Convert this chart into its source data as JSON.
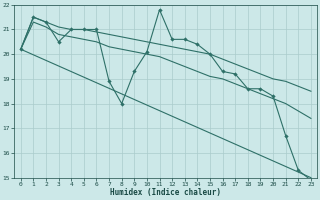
{
  "xlabel": "Humidex (Indice chaleur)",
  "bg_color": "#cce8e8",
  "grid_color": "#aacccc",
  "line_color": "#2e7068",
  "xlim": [
    -0.5,
    23.5
  ],
  "ylim": [
    15,
    22
  ],
  "xticks": [
    0,
    1,
    2,
    3,
    4,
    5,
    6,
    7,
    8,
    9,
    10,
    11,
    12,
    13,
    14,
    15,
    16,
    17,
    18,
    19,
    20,
    21,
    22,
    23
  ],
  "yticks": [
    15,
    16,
    17,
    18,
    19,
    20,
    21,
    22
  ],
  "line1_x": [
    0,
    1,
    2,
    3,
    4,
    5,
    6,
    7,
    8,
    9,
    10,
    11,
    12,
    13,
    14,
    15,
    16,
    17,
    18,
    19,
    20,
    21,
    22,
    23
  ],
  "line1_y": [
    20.2,
    21.5,
    21.3,
    20.5,
    21.0,
    21.0,
    21.0,
    18.9,
    18.0,
    19.3,
    20.1,
    21.8,
    20.6,
    20.6,
    20.4,
    20.0,
    19.3,
    19.2,
    18.6,
    18.6,
    18.3,
    16.7,
    15.3,
    14.9
  ],
  "line2_x": [
    0,
    23
  ],
  "line2_y": [
    20.2,
    15.0
  ],
  "line3_x": [
    0,
    1,
    2,
    3,
    4,
    5,
    6,
    7,
    8,
    9,
    10,
    11,
    12,
    13,
    14,
    15,
    16,
    17,
    18,
    19,
    20,
    21,
    22,
    23
  ],
  "line3_y": [
    20.2,
    21.5,
    21.3,
    21.1,
    21.0,
    21.0,
    20.9,
    20.8,
    20.7,
    20.6,
    20.5,
    20.4,
    20.3,
    20.2,
    20.1,
    20.0,
    19.8,
    19.6,
    19.4,
    19.2,
    19.0,
    18.9,
    18.7,
    18.5
  ],
  "line4_x": [
    0,
    1,
    2,
    3,
    4,
    5,
    6,
    7,
    8,
    9,
    10,
    11,
    12,
    13,
    14,
    15,
    16,
    17,
    18,
    19,
    20,
    21,
    22,
    23
  ],
  "line4_y": [
    20.2,
    21.3,
    21.1,
    20.8,
    20.7,
    20.6,
    20.5,
    20.3,
    20.2,
    20.1,
    20.0,
    19.9,
    19.7,
    19.5,
    19.3,
    19.1,
    19.0,
    18.8,
    18.6,
    18.4,
    18.2,
    18.0,
    17.7,
    17.4
  ]
}
